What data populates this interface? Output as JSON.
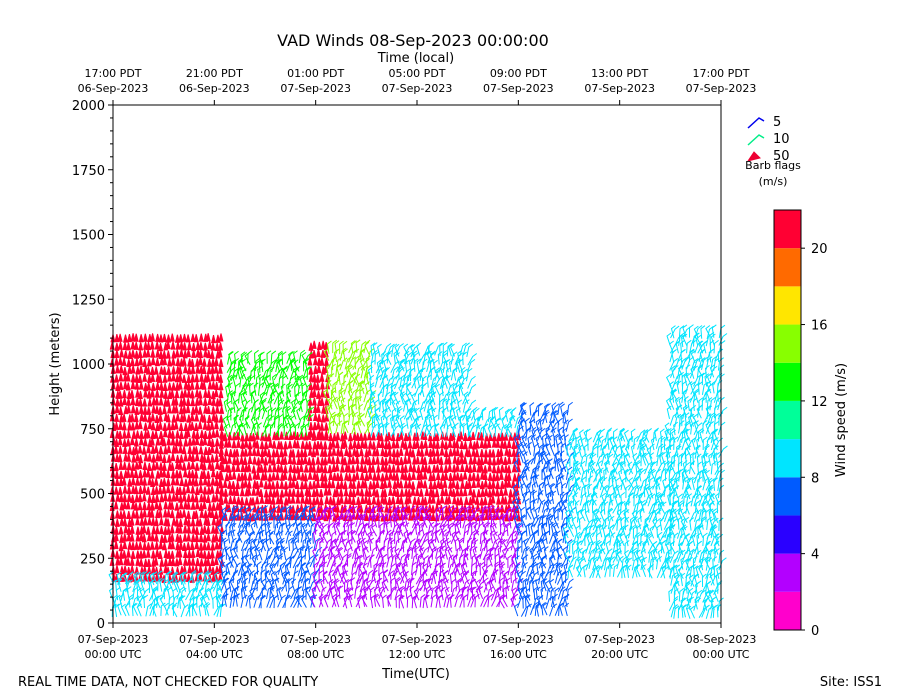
{
  "chart_data": {
    "type": "barb-heatmap",
    "title": "VAD Winds 08-Sep-2023 00:00:00",
    "top_axis_title": "Time (local)",
    "xlabel": "Time(UTC)",
    "ylabel": "Height (meters)",
    "xlim_hours": [
      0,
      24
    ],
    "ylim": [
      0,
      2000
    ],
    "yticks": [
      0,
      250,
      500,
      750,
      1000,
      1250,
      1500,
      1750,
      2000
    ],
    "bottom_ticks": [
      {
        "hour": 0,
        "l1": "07-Sep-2023",
        "l2": "00:00 UTC"
      },
      {
        "hour": 4,
        "l1": "07-Sep-2023",
        "l2": "04:00 UTC"
      },
      {
        "hour": 8,
        "l1": "07-Sep-2023",
        "l2": "08:00 UTC"
      },
      {
        "hour": 12,
        "l1": "07-Sep-2023",
        "l2": "12:00 UTC"
      },
      {
        "hour": 16,
        "l1": "07-Sep-2023",
        "l2": "16:00 UTC"
      },
      {
        "hour": 20,
        "l1": "07-Sep-2023",
        "l2": "20:00 UTC"
      },
      {
        "hour": 24,
        "l1": "08-Sep-2023",
        "l2": "00:00 UTC"
      }
    ],
    "top_ticks": [
      {
        "hour": 0,
        "l1": "17:00 PDT",
        "l2": "06-Sep-2023"
      },
      {
        "hour": 4,
        "l1": "21:00 PDT",
        "l2": "06-Sep-2023"
      },
      {
        "hour": 8,
        "l1": "01:00 PDT",
        "l2": "07-Sep-2023"
      },
      {
        "hour": 12,
        "l1": "05:00 PDT",
        "l2": "07-Sep-2023"
      },
      {
        "hour": 16,
        "l1": "09:00 PDT",
        "l2": "07-Sep-2023"
      },
      {
        "hour": 20,
        "l1": "13:00 PDT",
        "l2": "07-Sep-2023"
      },
      {
        "hour": 24,
        "l1": "17:00 PDT",
        "l2": "07-Sep-2023"
      }
    ],
    "barb_legend": {
      "items": [
        {
          "label": "5",
          "color": "#0000ee"
        },
        {
          "label": "10",
          "color": "#00ee88"
        },
        {
          "label": "50",
          "color": "#ee0033"
        }
      ],
      "title": "Barb flags",
      "units": "(m/s)"
    },
    "colorbar": {
      "label": "Wind speed (m/s)",
      "range": [
        0,
        22
      ],
      "ticks": [
        0,
        4,
        8,
        12,
        16,
        20
      ],
      "colors": [
        "#ff00cc",
        "#b300ff",
        "#2a00ff",
        "#005bff",
        "#00e5ff",
        "#00ff99",
        "#00ff00",
        "#88ff00",
        "#ffe600",
        "#ff6a00",
        "#ff0033"
      ]
    },
    "regions": [
      {
        "t": [
          0.0,
          4.3
        ],
        "h": [
          150,
          1100
        ],
        "speed": 21,
        "desc": "strong red flags"
      },
      {
        "t": [
          4.3,
          16.0
        ],
        "h": [
          400,
          720
        ],
        "speed": 21
      },
      {
        "t": [
          7.8,
          8.5
        ],
        "h": [
          700,
          1070
        ],
        "speed": 21
      },
      {
        "t": [
          4.5,
          7.8
        ],
        "h": [
          720,
          1000
        ],
        "speed": 12
      },
      {
        "t": [
          8.5,
          10.2
        ],
        "h": [
          720,
          1040
        ],
        "speed": 14
      },
      {
        "t": [
          10.2,
          14.0
        ],
        "h": [
          720,
          1030
        ],
        "speed": 9
      },
      {
        "t": [
          14.0,
          16.0
        ],
        "h": [
          700,
          780
        ],
        "speed": 8
      },
      {
        "t": [
          0.0,
          4.3
        ],
        "h": [
          10,
          150
        ],
        "speed": 8
      },
      {
        "t": [
          4.3,
          8.0
        ],
        "h": [
          30,
          400
        ],
        "speed": 6
      },
      {
        "t": [
          8.0,
          16.0
        ],
        "h": [
          30,
          400
        ],
        "speed": 3
      },
      {
        "t": [
          16.0,
          18.0
        ],
        "h": [
          10,
          800
        ],
        "speed": 6
      },
      {
        "t": [
          18.0,
          22.0
        ],
        "h": [
          150,
          700
        ],
        "speed": 9
      },
      {
        "t": [
          22.0,
          24.0
        ],
        "h": [
          10,
          1100
        ],
        "speed": 8
      }
    ]
  },
  "footer": {
    "left_note": "REAL TIME DATA, NOT CHECKED FOR QUALITY",
    "site": "Site: ISS1"
  }
}
